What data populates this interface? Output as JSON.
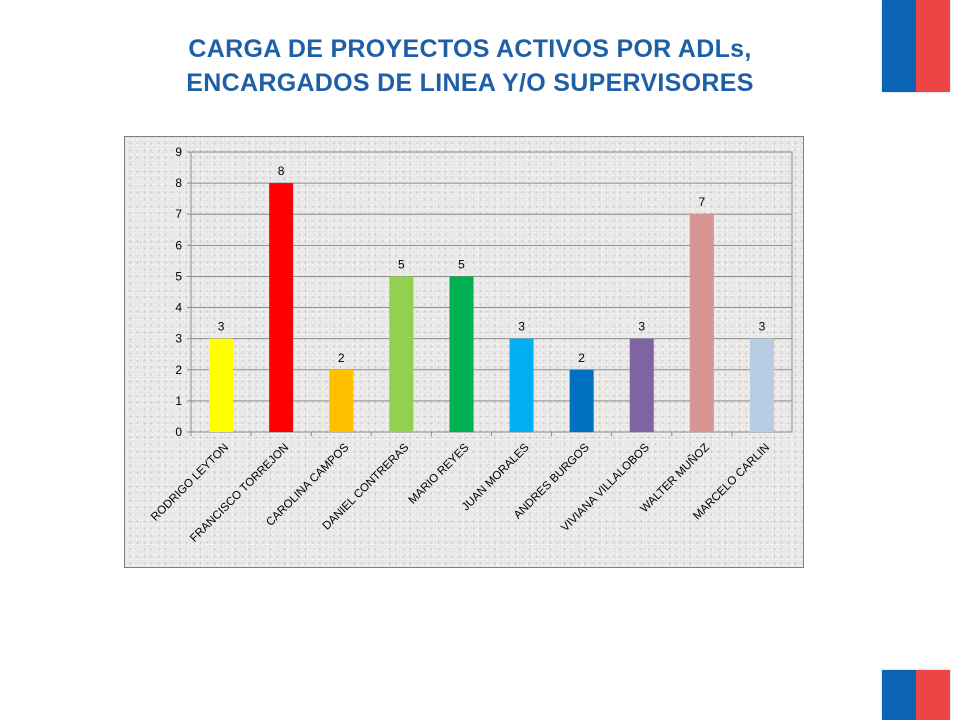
{
  "title": {
    "line1": "CARGA DE PROYECTOS ACTIVOS POR ADLs,",
    "line2": "ENCARGADOS DE LINEA Y/O SUPERVISORES"
  },
  "brand": {
    "flag_blue": "#0b63b5",
    "flag_red": "#ef4444",
    "title_color": "#1f5fa6"
  },
  "chart_data": {
    "type": "bar",
    "categories": [
      "RODRIGO LEYTON",
      "FRANCISCO TORREJON",
      "CAROLINA CAMPOS",
      "DANIEL CONTRERAS",
      "MARIO REYES",
      "JUAN MORALES",
      "ANDRES BURGOS",
      "VIVIANA VILLALOBOS",
      "WALTER MUÑOZ",
      "MARCELO CARLIN"
    ],
    "values": [
      3,
      8,
      2,
      5,
      5,
      3,
      2,
      3,
      7,
      3
    ],
    "bar_colors": [
      "#ffff00",
      "#ff0000",
      "#ffc000",
      "#92d050",
      "#00b050",
      "#00b0f0",
      "#0070c0",
      "#8064a2",
      "#d99594",
      "#b8cce4"
    ],
    "ylim": [
      0,
      9
    ],
    "yticks": [
      0,
      1,
      2,
      3,
      4,
      5,
      6,
      7,
      8,
      9
    ],
    "grid": true,
    "legend": "none",
    "data_labels": true
  }
}
